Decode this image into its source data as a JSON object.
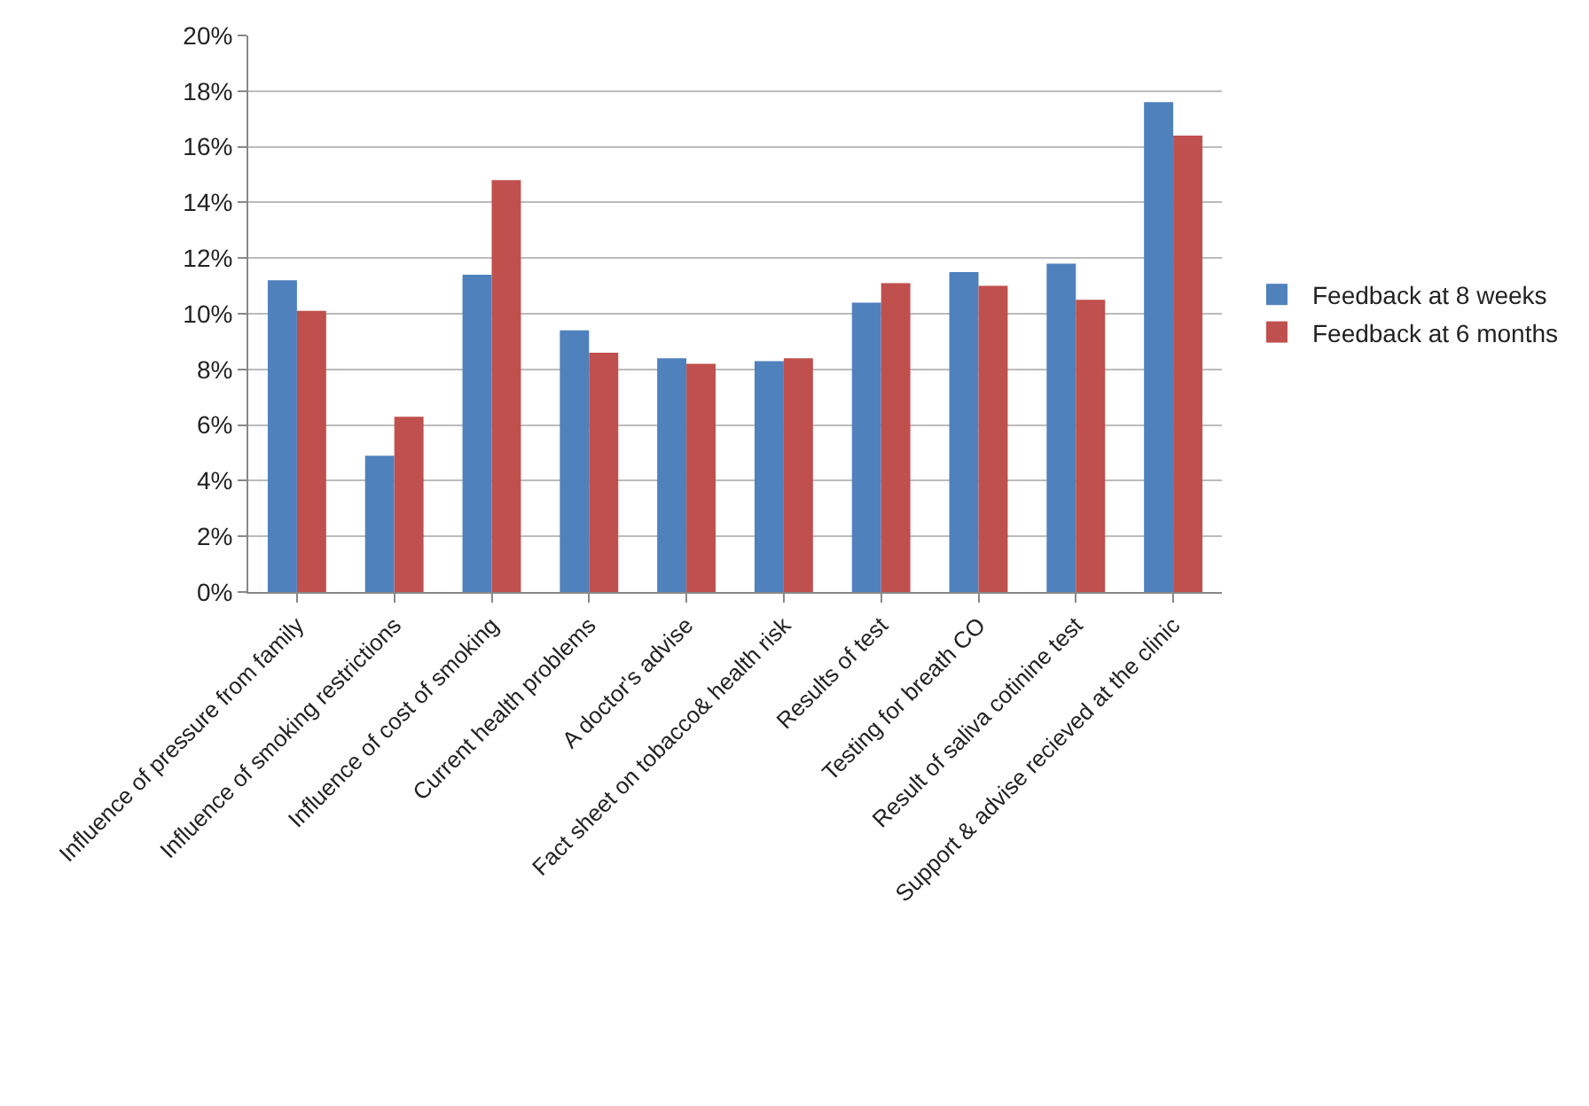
{
  "chart_data": {
    "type": "bar",
    "categories": [
      "Influence of pressure from family",
      "Influence of smoking restrictions",
      "Influence of cost of smoking",
      "Current health problems",
      "A doctor's advise",
      "Fact sheet on tobacco& health risk",
      "Results of test",
      "Testing for breath CO",
      "Result of saliva cotinine test",
      "Support & advise recieved at the clinic"
    ],
    "series": [
      {
        "name": "Feedback at 8 weeks",
        "color": "#4f81bd",
        "values": [
          11.2,
          4.9,
          11.4,
          9.4,
          8.4,
          8.3,
          10.4,
          11.5,
          11.8,
          17.6
        ]
      },
      {
        "name": "Feedback at 6 months",
        "color": "#c0504d",
        "values": [
          10.1,
          6.3,
          14.8,
          8.6,
          8.2,
          8.4,
          11.1,
          11.0,
          10.5,
          16.4
        ]
      }
    ],
    "ylim": [
      0,
      20
    ],
    "yticks": [
      {
        "value": 0,
        "label": "0%"
      },
      {
        "value": 2,
        "label": "2%"
      },
      {
        "value": 4,
        "label": "4%"
      },
      {
        "value": 6,
        "label": "6%"
      },
      {
        "value": 8,
        "label": "8%"
      },
      {
        "value": 10,
        "label": "10%"
      },
      {
        "value": 12,
        "label": "12%"
      },
      {
        "value": 14,
        "label": "14%"
      },
      {
        "value": 16,
        "label": "16%"
      },
      {
        "value": 18,
        "label": "18%"
      },
      {
        "value": 20,
        "label": "20%"
      }
    ],
    "grid": "y",
    "legend": "right"
  }
}
